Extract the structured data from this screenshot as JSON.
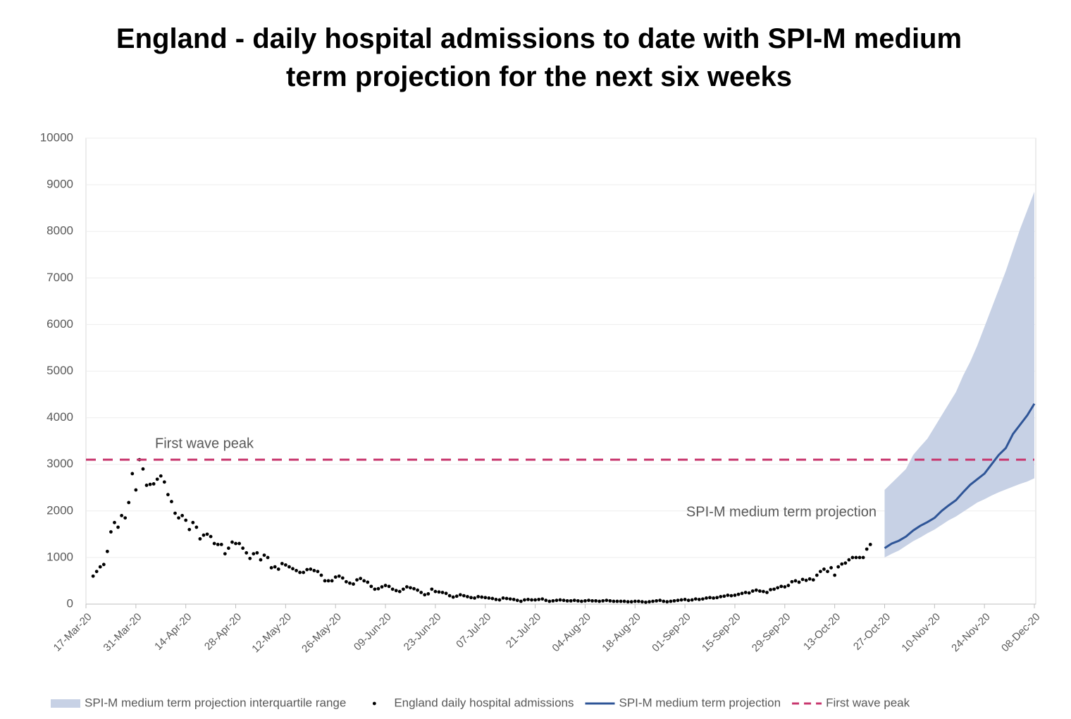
{
  "chart_data": {
    "type": "combo",
    "title": "England - daily hospital admissions to date with SPI-M medium term projection for the next six weeks",
    "xlim": [
      0,
      266
    ],
    "xticks": [
      {
        "value": 0,
        "label": "17-Mar-20"
      },
      {
        "value": 14,
        "label": "31-Mar-20"
      },
      {
        "value": 28,
        "label": "14-Apr-20"
      },
      {
        "value": 42,
        "label": "28-Apr-20"
      },
      {
        "value": 56,
        "label": "12-May-20"
      },
      {
        "value": 70,
        "label": "26-May-20"
      },
      {
        "value": 84,
        "label": "09-Jun-20"
      },
      {
        "value": 98,
        "label": "23-Jun-20"
      },
      {
        "value": 112,
        "label": "07-Jul-20"
      },
      {
        "value": 126,
        "label": "21-Jul-20"
      },
      {
        "value": 140,
        "label": "04-Aug-20"
      },
      {
        "value": 154,
        "label": "18-Aug-20"
      },
      {
        "value": 168,
        "label": "01-Sep-20"
      },
      {
        "value": 182,
        "label": "15-Sep-20"
      },
      {
        "value": 196,
        "label": "29-Sep-20"
      },
      {
        "value": 210,
        "label": "13-Oct-20"
      },
      {
        "value": 224,
        "label": "27-Oct-20"
      },
      {
        "value": 238,
        "label": "10-Nov-20"
      },
      {
        "value": 252,
        "label": "24-Nov-20"
      },
      {
        "value": 266,
        "label": "08-Dec-20"
      }
    ],
    "ylim": [
      0,
      10000
    ],
    "yticks": [
      0,
      1000,
      2000,
      3000,
      4000,
      5000,
      6000,
      7000,
      8000,
      9000,
      10000
    ],
    "grid": true,
    "legend": "bottom",
    "annotations": [
      "First wave peak",
      "SPI-M medium term projection"
    ],
    "series": [
      {
        "name": "SPI-M medium term projection interquartile range",
        "type": "band",
        "color": "#c7d1e5",
        "x": [
          224,
          226,
          228,
          230,
          232,
          234,
          236,
          238,
          240,
          242,
          244,
          246,
          248,
          250,
          252,
          254,
          256,
          258,
          260,
          262,
          264,
          266
        ],
        "low": [
          1000,
          1080,
          1150,
          1250,
          1350,
          1430,
          1520,
          1600,
          1700,
          1800,
          1880,
          1980,
          2080,
          2180,
          2250,
          2330,
          2400,
          2460,
          2520,
          2580,
          2630,
          2700
        ],
        "high": [
          2450,
          2600,
          2750,
          2900,
          3200,
          3380,
          3550,
          3800,
          4050,
          4300,
          4550,
          4900,
          5200,
          5550,
          5950,
          6350,
          6750,
          7150,
          7600,
          8050,
          8450,
          8850
        ]
      },
      {
        "name": "England daily hospital admissions",
        "type": "scatter",
        "color": "#000000",
        "x": [
          2,
          3,
          4,
          5,
          6,
          7,
          8,
          9,
          10,
          11,
          12,
          13,
          14,
          15,
          16,
          17,
          18,
          19,
          20,
          21,
          22,
          23,
          24,
          25,
          26,
          27,
          28,
          29,
          30,
          31,
          32,
          33,
          34,
          35,
          36,
          37,
          38,
          39,
          40,
          41,
          42,
          43,
          44,
          45,
          46,
          47,
          48,
          49,
          50,
          51,
          52,
          53,
          54,
          55,
          56,
          57,
          58,
          59,
          60,
          61,
          62,
          63,
          64,
          65,
          66,
          67,
          68,
          69,
          70,
          71,
          72,
          73,
          74,
          75,
          76,
          77,
          78,
          79,
          80,
          81,
          82,
          83,
          84,
          85,
          86,
          87,
          88,
          89,
          90,
          91,
          92,
          93,
          94,
          95,
          96,
          97,
          98,
          99,
          100,
          101,
          102,
          103,
          104,
          105,
          106,
          107,
          108,
          109,
          110,
          111,
          112,
          113,
          114,
          115,
          116,
          117,
          118,
          119,
          120,
          121,
          122,
          123,
          124,
          125,
          126,
          127,
          128,
          129,
          130,
          131,
          132,
          133,
          134,
          135,
          136,
          137,
          138,
          139,
          140,
          141,
          142,
          143,
          144,
          145,
          146,
          147,
          148,
          149,
          150,
          151,
          152,
          153,
          154,
          155,
          156,
          157,
          158,
          159,
          160,
          161,
          162,
          163,
          164,
          165,
          166,
          167,
          168,
          169,
          170,
          171,
          172,
          173,
          174,
          175,
          176,
          177,
          178,
          179,
          180,
          181,
          182,
          183,
          184,
          185,
          186,
          187,
          188,
          189,
          190,
          191,
          192,
          193,
          194,
          195,
          196,
          197,
          198,
          199,
          200,
          201,
          202,
          203,
          204,
          205,
          206,
          207,
          208,
          209,
          210,
          211,
          212,
          213,
          214,
          215,
          216,
          217,
          218,
          219,
          220
        ],
        "values": [
          600,
          700,
          800,
          850,
          1130,
          1550,
          1750,
          1650,
          1900,
          1850,
          2180,
          2800,
          2450,
          3100,
          2900,
          2550,
          2570,
          2580,
          2680,
          2750,
          2620,
          2350,
          2200,
          1950,
          1850,
          1900,
          1800,
          1600,
          1750,
          1650,
          1400,
          1480,
          1500,
          1450,
          1300,
          1280,
          1280,
          1080,
          1200,
          1330,
          1300,
          1300,
          1200,
          1100,
          980,
          1080,
          1100,
          950,
          1050,
          1000,
          780,
          800,
          750,
          870,
          840,
          800,
          760,
          720,
          680,
          680,
          740,
          750,
          720,
          700,
          620,
          500,
          500,
          500,
          580,
          600,
          560,
          480,
          450,
          430,
          520,
          550,
          500,
          470,
          380,
          320,
          330,
          370,
          400,
          380,
          320,
          290,
          270,
          320,
          370,
          350,
          330,
          300,
          250,
          200,
          220,
          320,
          270,
          260,
          250,
          230,
          180,
          150,
          170,
          200,
          180,
          160,
          140,
          130,
          160,
          150,
          140,
          130,
          120,
          100,
          90,
          130,
          120,
          110,
          100,
          80,
          60,
          90,
          100,
          90,
          90,
          100,
          110,
          80,
          60,
          70,
          80,
          90,
          80,
          70,
          70,
          80,
          70,
          60,
          70,
          80,
          70,
          70,
          60,
          70,
          80,
          70,
          60,
          60,
          60,
          60,
          50,
          50,
          60,
          60,
          50,
          40,
          50,
          60,
          70,
          80,
          60,
          50,
          60,
          70,
          80,
          90,
          100,
          80,
          90,
          110,
          100,
          110,
          130,
          140,
          130,
          140,
          160,
          170,
          190,
          180,
          190,
          210,
          230,
          250,
          240,
          280,
          300,
          280,
          270,
          250,
          310,
          320,
          350,
          380,
          370,
          400,
          480,
          500,
          470,
          530,
          510,
          540,
          520,
          620,
          700,
          750,
          700,
          780,
          620,
          800,
          860,
          880,
          950,
          1000,
          1000,
          1000,
          1000,
          1180,
          1280
        ]
      },
      {
        "name": "SPI-M medium term projection",
        "type": "line",
        "color": "#2f5597",
        "x": [
          224,
          226,
          228,
          230,
          232,
          234,
          236,
          238,
          240,
          242,
          244,
          246,
          248,
          250,
          252,
          254,
          256,
          258,
          260,
          262,
          264,
          266
        ],
        "values": [
          1200,
          1300,
          1360,
          1450,
          1580,
          1680,
          1760,
          1850,
          2000,
          2120,
          2230,
          2400,
          2560,
          2680,
          2800,
          3000,
          3200,
          3350,
          3650,
          3850,
          4050,
          4300
        ]
      },
      {
        "name": "First wave peak",
        "type": "hline",
        "color": "#c8376e",
        "value": 3100
      }
    ]
  }
}
